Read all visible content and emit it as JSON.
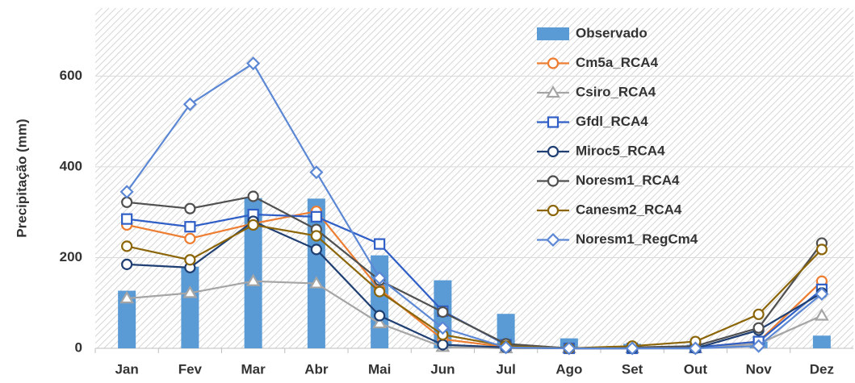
{
  "chart_data": {
    "type": "bar_line",
    "y_label": "Precipitação (mm)",
    "categories": [
      "Jan",
      "Fev",
      "Mar",
      "Abr",
      "Mai",
      "Jun",
      "Jul",
      "Ago",
      "Set",
      "Out",
      "Nov",
      "Dez"
    ],
    "ylim": [
      0,
      750
    ],
    "yticks": [
      0,
      200,
      400,
      600
    ],
    "series": [
      {
        "name": "Observado",
        "kind": "bar",
        "color": "#5b9bd5",
        "values": [
          127,
          180,
          331,
          330,
          205,
          150,
          76,
          22,
          10,
          8,
          15,
          28
        ]
      },
      {
        "name": "Cm5a_RCA4",
        "kind": "line",
        "marker": "circle",
        "color": "#ed7d31",
        "values": [
          272,
          242,
          275,
          302,
          130,
          20,
          3,
          0,
          0,
          2,
          15,
          148
        ]
      },
      {
        "name": "Csiro_RCA4",
        "kind": "line",
        "marker": "triangle",
        "color": "#a5a5a5",
        "values": [
          110,
          122,
          148,
          143,
          55,
          3,
          0,
          0,
          0,
          0,
          10,
          72
        ]
      },
      {
        "name": "Gfdl_RCA4",
        "kind": "line",
        "marker": "square",
        "color": "#2f5fc6",
        "values": [
          285,
          268,
          295,
          290,
          230,
          82,
          8,
          0,
          0,
          2,
          15,
          130
        ]
      },
      {
        "name": "Miroc5_RCA4",
        "kind": "line",
        "marker": "circle",
        "color": "#1f3f73",
        "values": [
          185,
          178,
          280,
          218,
          72,
          8,
          2,
          0,
          0,
          0,
          40,
          122
        ]
      },
      {
        "name": "Noresm1_RCA4",
        "kind": "line",
        "marker": "circle",
        "color": "#505050",
        "values": [
          322,
          308,
          335,
          262,
          150,
          80,
          10,
          0,
          2,
          5,
          45,
          232
        ]
      },
      {
        "name": "Canesm2_RCA4",
        "kind": "line",
        "marker": "circle",
        "color": "#8b6508",
        "values": [
          225,
          195,
          272,
          248,
          125,
          30,
          5,
          0,
          5,
          15,
          75,
          218
        ]
      },
      {
        "name": "Noresm1_RegCm4",
        "kind": "line",
        "marker": "diamond",
        "color": "#5b87d4",
        "values": [
          345,
          538,
          628,
          388,
          155,
          45,
          2,
          0,
          0,
          0,
          5,
          120
        ]
      }
    ]
  }
}
